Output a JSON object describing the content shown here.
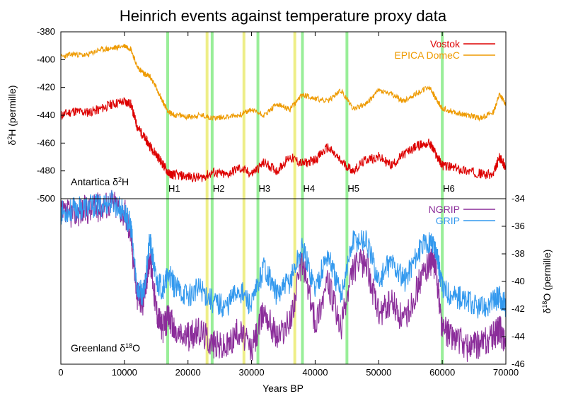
{
  "chart_data": {
    "type": "line",
    "title": "Heinrich events against temperature proxy data",
    "xlabel": "Years BP",
    "xlim": [
      0,
      70000
    ],
    "x_ticks": [
      "0",
      "10000",
      "20000",
      "30000",
      "40000",
      "50000",
      "60000",
      "70000"
    ],
    "x_tick_values": [
      0,
      10000,
      20000,
      30000,
      40000,
      50000,
      60000,
      70000
    ],
    "top_panel": {
      "label_main": "Antartica δ",
      "label_sup": "2",
      "label_tail": "H",
      "ylabel_main": "δ",
      "ylabel_sup": "2",
      "ylabel_tail": "H (permille)",
      "ylim": [
        -500,
        -380
      ],
      "y_ticks": [
        "-380",
        "-400",
        "-420",
        "-440",
        "-460",
        "-480",
        "-500"
      ],
      "y_tick_values": [
        -380,
        -400,
        -420,
        -440,
        -460,
        -480,
        -500
      ],
      "series": [
        {
          "name": "Vostok",
          "color": "#dd0000",
          "x": [
            0,
            2000,
            4000,
            6000,
            8000,
            10000,
            11000,
            12000,
            13000,
            14000,
            15000,
            16000,
            17000,
            18000,
            20000,
            22000,
            24000,
            26000,
            28000,
            30000,
            32000,
            34000,
            36000,
            38000,
            40000,
            42000,
            44000,
            46000,
            48000,
            50000,
            52000,
            54000,
            56000,
            58000,
            59000,
            60000,
            62000,
            64000,
            66000,
            68000,
            69000,
            70000
          ],
          "y": [
            -440,
            -437,
            -438,
            -436,
            -432,
            -430,
            -432,
            -448,
            -455,
            -462,
            -468,
            -475,
            -482,
            -483,
            -484,
            -485,
            -481,
            -483,
            -478,
            -482,
            -474,
            -480,
            -470,
            -475,
            -472,
            -463,
            -473,
            -480,
            -472,
            -470,
            -476,
            -468,
            -462,
            -460,
            -468,
            -476,
            -478,
            -480,
            -482,
            -483,
            -470,
            -478
          ]
        },
        {
          "name": "EPICA DomeC",
          "color": "#ee9a00",
          "x": [
            0,
            2000,
            4000,
            6000,
            8000,
            10000,
            11000,
            12000,
            13000,
            14000,
            15000,
            16000,
            17000,
            18000,
            20000,
            22000,
            24000,
            26000,
            28000,
            30000,
            32000,
            34000,
            36000,
            38000,
            40000,
            42000,
            44000,
            46000,
            48000,
            50000,
            52000,
            54000,
            56000,
            58000,
            59000,
            60000,
            62000,
            64000,
            66000,
            68000,
            69000,
            70000
          ],
          "y": [
            -398,
            -396,
            -397,
            -393,
            -392,
            -390,
            -392,
            -405,
            -410,
            -412,
            -420,
            -430,
            -438,
            -440,
            -441,
            -440,
            -442,
            -441,
            -440,
            -436,
            -440,
            -432,
            -436,
            -425,
            -428,
            -430,
            -422,
            -435,
            -432,
            -422,
            -425,
            -430,
            -424,
            -420,
            -428,
            -435,
            -438,
            -440,
            -442,
            -438,
            -425,
            -432
          ]
        }
      ],
      "legend": "top-right"
    },
    "bottom_panel": {
      "label_main": "Greenland δ",
      "label_sup": "18",
      "label_tail": "O",
      "ylabel_main": "δ",
      "ylabel_sup": "18",
      "ylabel_tail": "O (permille)",
      "ylim": [
        -46,
        -34
      ],
      "y_ticks": [
        "-34",
        "-36",
        "-38",
        "-40",
        "-42",
        "-44",
        "-46"
      ],
      "y_tick_values": [
        -34,
        -36,
        -38,
        -40,
        -42,
        -44,
        -46
      ],
      "series": [
        {
          "name": "NGRIP",
          "color": "#8b2d9a",
          "x": [
            0,
            2000,
            4000,
            6000,
            8000,
            10000,
            11000,
            12000,
            13000,
            14000,
            15000,
            16000,
            17000,
            18000,
            20000,
            22000,
            24000,
            26000,
            28000,
            30000,
            32000,
            34000,
            36000,
            38000,
            40000,
            42000,
            44000,
            46000,
            48000,
            50000,
            52000,
            54000,
            56000,
            58000,
            59000,
            60000,
            62000,
            64000,
            66000,
            68000,
            69000,
            70000
          ],
          "y": [
            -35.2,
            -35.0,
            -34.8,
            -34.6,
            -34.2,
            -35.0,
            -36.5,
            -41.0,
            -41.5,
            -38.0,
            -42.0,
            -43.5,
            -42.5,
            -43.8,
            -44.0,
            -43.6,
            -44.5,
            -44.8,
            -43.5,
            -45.0,
            -42.0,
            -44.0,
            -43.0,
            -38.5,
            -43.0,
            -40.0,
            -43.5,
            -39.0,
            -38.5,
            -42.5,
            -41.5,
            -43.0,
            -40.5,
            -38.5,
            -39.0,
            -43.5,
            -44.0,
            -44.8,
            -44.5,
            -44.0,
            -43.5,
            -44.3
          ]
        },
        {
          "name": "GRIP",
          "color": "#3399ee",
          "x": [
            0,
            2000,
            4000,
            6000,
            8000,
            10000,
            11000,
            12000,
            13000,
            14000,
            15000,
            16000,
            17000,
            18000,
            20000,
            22000,
            24000,
            26000,
            28000,
            30000,
            32000,
            34000,
            36000,
            38000,
            40000,
            42000,
            44000,
            46000,
            48000,
            50000,
            52000,
            54000,
            56000,
            58000,
            59000,
            60000,
            62000,
            64000,
            66000,
            68000,
            69000,
            70000
          ],
          "y": [
            -35.0,
            -34.8,
            -34.6,
            -34.5,
            -34.2,
            -35.0,
            -36.0,
            -40.5,
            -41.0,
            -37.0,
            -40.0,
            -40.5,
            -39.5,
            -40.5,
            -41.0,
            -40.5,
            -41.5,
            -41.8,
            -40.5,
            -41.8,
            -38.8,
            -41.0,
            -40.0,
            -37.5,
            -40.5,
            -38.0,
            -41.0,
            -37.0,
            -37.0,
            -40.0,
            -38.5,
            -40.0,
            -38.0,
            -37.0,
            -37.5,
            -40.5,
            -41.0,
            -41.5,
            -42.0,
            -41.5,
            -41.0,
            -41.8
          ]
        }
      ],
      "legend": "top-right"
    },
    "heinrich_events": [
      {
        "label": "H1",
        "x": 16800
      },
      {
        "label": "H2",
        "x": 23800
      },
      {
        "label": "H3",
        "x": 31000
      },
      {
        "label": "H4",
        "x": 38000
      },
      {
        "label": "H5",
        "x": 45000
      },
      {
        "label": "H6",
        "x": 60000
      }
    ],
    "heinrich_color": "#99ee99",
    "secondary_bands": [
      {
        "x": 23000
      },
      {
        "x": 28800
      },
      {
        "x": 36800
      }
    ],
    "secondary_band_color": "#eeee88",
    "grid": false
  }
}
